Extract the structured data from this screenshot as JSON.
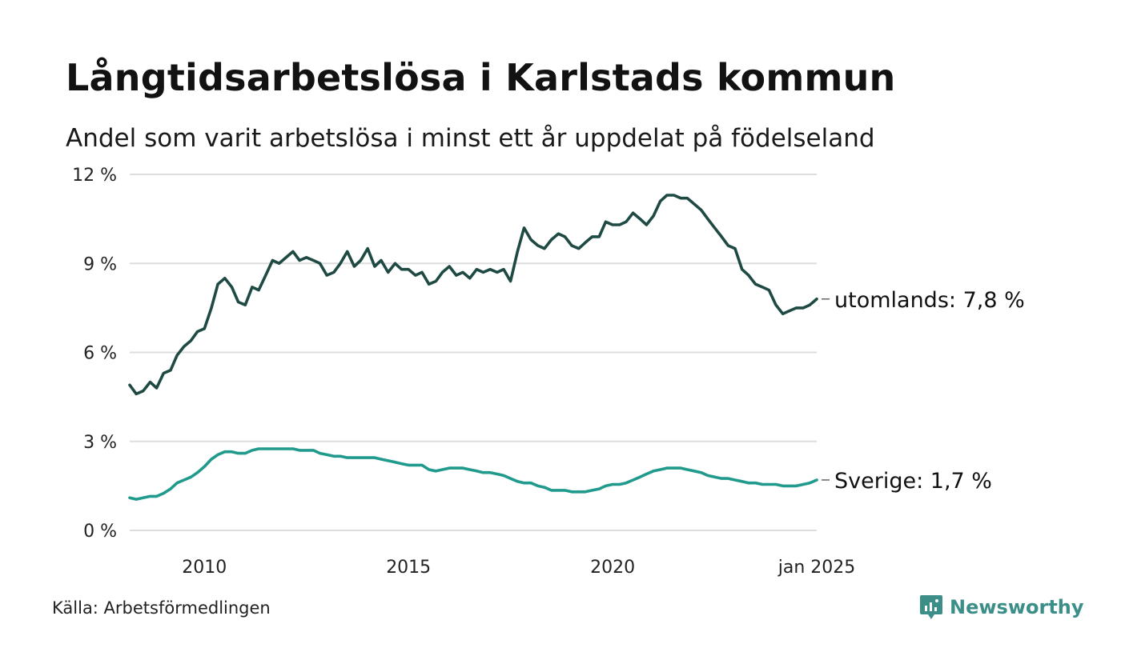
{
  "header": {
    "title": "Långtidsarbetslösa i Karlstads kommun",
    "subtitle": "Andel som varit arbetslösa i minst ett år uppdelat på födelseland"
  },
  "footer": {
    "source": "Källa: Arbetsförmedlingen",
    "brand": "Newsworthy"
  },
  "colors": {
    "utomlands": "#1f4a44",
    "sverige": "#1f9a8c",
    "grid": "#dddddd",
    "brand": "#3b8f88"
  },
  "chart_data": {
    "type": "line",
    "title": "Långtidsarbetslösa i Karlstads kommun",
    "subtitle": "Andel som varit arbetslösa i minst ett år uppdelat på födelseland",
    "xlabel": "",
    "ylabel": "",
    "x_range": [
      2008.17,
      2025.0
    ],
    "ylim": [
      0,
      12
    ],
    "y_ticks": [
      0,
      3,
      6,
      9,
      12
    ],
    "y_tick_labels": [
      "0 %",
      "3 %",
      "6 %",
      "9 %",
      "12 %"
    ],
    "x_ticks": [
      2010,
      2015,
      2020,
      2025
    ],
    "x_tick_labels": [
      "2010",
      "2015",
      "2020",
      "jan 2025"
    ],
    "grid": true,
    "series": [
      {
        "name": "utomlands",
        "end_label": "utomlands: 7,8 %",
        "last_value": 7.8,
        "points": [
          [
            2008.17,
            4.9
          ],
          [
            2008.33,
            4.6
          ],
          [
            2008.5,
            4.7
          ],
          [
            2008.67,
            5.0
          ],
          [
            2008.83,
            4.8
          ],
          [
            2009.0,
            5.3
          ],
          [
            2009.17,
            5.4
          ],
          [
            2009.33,
            5.9
          ],
          [
            2009.5,
            6.2
          ],
          [
            2009.67,
            6.4
          ],
          [
            2009.83,
            6.7
          ],
          [
            2010.0,
            6.8
          ],
          [
            2010.17,
            7.5
          ],
          [
            2010.33,
            8.3
          ],
          [
            2010.5,
            8.5
          ],
          [
            2010.67,
            8.2
          ],
          [
            2010.83,
            7.7
          ],
          [
            2011.0,
            7.6
          ],
          [
            2011.17,
            8.2
          ],
          [
            2011.33,
            8.1
          ],
          [
            2011.5,
            8.6
          ],
          [
            2011.67,
            9.1
          ],
          [
            2011.83,
            9.0
          ],
          [
            2012.0,
            9.2
          ],
          [
            2012.17,
            9.4
          ],
          [
            2012.33,
            9.1
          ],
          [
            2012.5,
            9.2
          ],
          [
            2012.67,
            9.1
          ],
          [
            2012.83,
            9.0
          ],
          [
            2013.0,
            8.6
          ],
          [
            2013.17,
            8.7
          ],
          [
            2013.33,
            9.0
          ],
          [
            2013.5,
            9.4
          ],
          [
            2013.67,
            8.9
          ],
          [
            2013.83,
            9.1
          ],
          [
            2014.0,
            9.5
          ],
          [
            2014.17,
            8.9
          ],
          [
            2014.33,
            9.1
          ],
          [
            2014.5,
            8.7
          ],
          [
            2014.67,
            9.0
          ],
          [
            2014.83,
            8.8
          ],
          [
            2015.0,
            8.8
          ],
          [
            2015.17,
            8.6
          ],
          [
            2015.33,
            8.7
          ],
          [
            2015.5,
            8.3
          ],
          [
            2015.67,
            8.4
          ],
          [
            2015.83,
            8.7
          ],
          [
            2016.0,
            8.9
          ],
          [
            2016.17,
            8.6
          ],
          [
            2016.33,
            8.7
          ],
          [
            2016.5,
            8.5
          ],
          [
            2016.67,
            8.8
          ],
          [
            2016.83,
            8.7
          ],
          [
            2017.0,
            8.8
          ],
          [
            2017.17,
            8.7
          ],
          [
            2017.33,
            8.8
          ],
          [
            2017.5,
            8.4
          ],
          [
            2017.67,
            9.4
          ],
          [
            2017.83,
            10.2
          ],
          [
            2018.0,
            9.8
          ],
          [
            2018.17,
            9.6
          ],
          [
            2018.33,
            9.5
          ],
          [
            2018.5,
            9.8
          ],
          [
            2018.67,
            10.0
          ],
          [
            2018.83,
            9.9
          ],
          [
            2019.0,
            9.6
          ],
          [
            2019.17,
            9.5
          ],
          [
            2019.33,
            9.7
          ],
          [
            2019.5,
            9.9
          ],
          [
            2019.67,
            9.9
          ],
          [
            2019.83,
            10.4
          ],
          [
            2020.0,
            10.3
          ],
          [
            2020.17,
            10.3
          ],
          [
            2020.33,
            10.4
          ],
          [
            2020.5,
            10.7
          ],
          [
            2020.67,
            10.5
          ],
          [
            2020.83,
            10.3
          ],
          [
            2021.0,
            10.6
          ],
          [
            2021.17,
            11.1
          ],
          [
            2021.33,
            11.3
          ],
          [
            2021.5,
            11.3
          ],
          [
            2021.67,
            11.2
          ],
          [
            2021.83,
            11.2
          ],
          [
            2022.0,
            11.0
          ],
          [
            2022.17,
            10.8
          ],
          [
            2022.33,
            10.5
          ],
          [
            2022.5,
            10.2
          ],
          [
            2022.67,
            9.9
          ],
          [
            2022.83,
            9.6
          ],
          [
            2023.0,
            9.5
          ],
          [
            2023.17,
            8.8
          ],
          [
            2023.33,
            8.6
          ],
          [
            2023.5,
            8.3
          ],
          [
            2023.67,
            8.2
          ],
          [
            2023.83,
            8.1
          ],
          [
            2024.0,
            7.6
          ],
          [
            2024.17,
            7.3
          ],
          [
            2024.33,
            7.4
          ],
          [
            2024.5,
            7.5
          ],
          [
            2024.67,
            7.5
          ],
          [
            2024.83,
            7.6
          ],
          [
            2025.0,
            7.8
          ]
        ]
      },
      {
        "name": "Sverige",
        "end_label": "Sverige: 1,7 %",
        "last_value": 1.7,
        "points": [
          [
            2008.17,
            1.1
          ],
          [
            2008.33,
            1.05
          ],
          [
            2008.5,
            1.1
          ],
          [
            2008.67,
            1.15
          ],
          [
            2008.83,
            1.15
          ],
          [
            2009.0,
            1.25
          ],
          [
            2009.17,
            1.4
          ],
          [
            2009.33,
            1.6
          ],
          [
            2009.5,
            1.7
          ],
          [
            2009.67,
            1.8
          ],
          [
            2009.83,
            1.95
          ],
          [
            2010.0,
            2.15
          ],
          [
            2010.17,
            2.4
          ],
          [
            2010.33,
            2.55
          ],
          [
            2010.5,
            2.65
          ],
          [
            2010.67,
            2.65
          ],
          [
            2010.83,
            2.6
          ],
          [
            2011.0,
            2.6
          ],
          [
            2011.17,
            2.7
          ],
          [
            2011.33,
            2.75
          ],
          [
            2011.5,
            2.75
          ],
          [
            2011.67,
            2.75
          ],
          [
            2011.83,
            2.75
          ],
          [
            2012.0,
            2.75
          ],
          [
            2012.17,
            2.75
          ],
          [
            2012.33,
            2.7
          ],
          [
            2012.5,
            2.7
          ],
          [
            2012.67,
            2.7
          ],
          [
            2012.83,
            2.6
          ],
          [
            2013.0,
            2.55
          ],
          [
            2013.17,
            2.5
          ],
          [
            2013.33,
            2.5
          ],
          [
            2013.5,
            2.45
          ],
          [
            2013.67,
            2.45
          ],
          [
            2013.83,
            2.45
          ],
          [
            2014.0,
            2.45
          ],
          [
            2014.17,
            2.45
          ],
          [
            2014.33,
            2.4
          ],
          [
            2014.5,
            2.35
          ],
          [
            2014.67,
            2.3
          ],
          [
            2014.83,
            2.25
          ],
          [
            2015.0,
            2.2
          ],
          [
            2015.17,
            2.2
          ],
          [
            2015.33,
            2.2
          ],
          [
            2015.5,
            2.05
          ],
          [
            2015.67,
            2.0
          ],
          [
            2015.83,
            2.05
          ],
          [
            2016.0,
            2.1
          ],
          [
            2016.17,
            2.1
          ],
          [
            2016.33,
            2.1
          ],
          [
            2016.5,
            2.05
          ],
          [
            2016.67,
            2.0
          ],
          [
            2016.83,
            1.95
          ],
          [
            2017.0,
            1.95
          ],
          [
            2017.17,
            1.9
          ],
          [
            2017.33,
            1.85
          ],
          [
            2017.5,
            1.75
          ],
          [
            2017.67,
            1.65
          ],
          [
            2017.83,
            1.6
          ],
          [
            2018.0,
            1.6
          ],
          [
            2018.17,
            1.5
          ],
          [
            2018.33,
            1.45
          ],
          [
            2018.5,
            1.35
          ],
          [
            2018.67,
            1.35
          ],
          [
            2018.83,
            1.35
          ],
          [
            2019.0,
            1.3
          ],
          [
            2019.17,
            1.3
          ],
          [
            2019.33,
            1.3
          ],
          [
            2019.5,
            1.35
          ],
          [
            2019.67,
            1.4
          ],
          [
            2019.83,
            1.5
          ],
          [
            2020.0,
            1.55
          ],
          [
            2020.17,
            1.55
          ],
          [
            2020.33,
            1.6
          ],
          [
            2020.5,
            1.7
          ],
          [
            2020.67,
            1.8
          ],
          [
            2020.83,
            1.9
          ],
          [
            2021.0,
            2.0
          ],
          [
            2021.17,
            2.05
          ],
          [
            2021.33,
            2.1
          ],
          [
            2021.5,
            2.1
          ],
          [
            2021.67,
            2.1
          ],
          [
            2021.83,
            2.05
          ],
          [
            2022.0,
            2.0
          ],
          [
            2022.17,
            1.95
          ],
          [
            2022.33,
            1.85
          ],
          [
            2022.5,
            1.8
          ],
          [
            2022.67,
            1.75
          ],
          [
            2022.83,
            1.75
          ],
          [
            2023.0,
            1.7
          ],
          [
            2023.17,
            1.65
          ],
          [
            2023.33,
            1.6
          ],
          [
            2023.5,
            1.6
          ],
          [
            2023.67,
            1.55
          ],
          [
            2023.83,
            1.55
          ],
          [
            2024.0,
            1.55
          ],
          [
            2024.17,
            1.5
          ],
          [
            2024.33,
            1.5
          ],
          [
            2024.5,
            1.5
          ],
          [
            2024.67,
            1.55
          ],
          [
            2024.83,
            1.6
          ],
          [
            2025.0,
            1.7
          ]
        ]
      }
    ]
  }
}
